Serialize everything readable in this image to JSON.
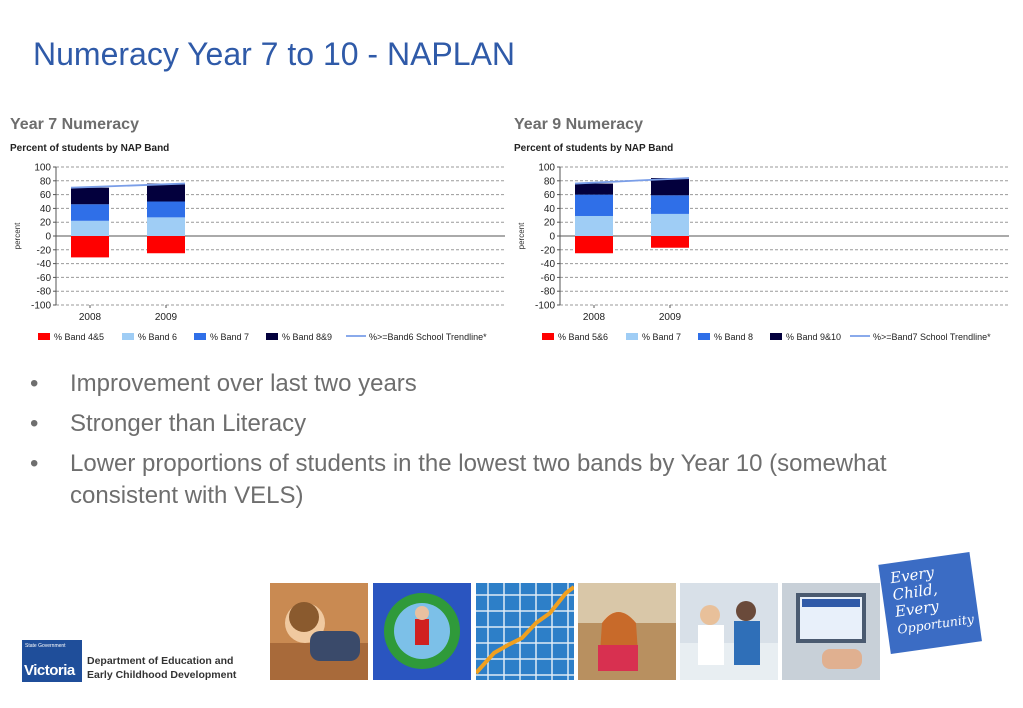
{
  "slide": {
    "title": "Numeracy Year 7 to 10 - NAPLAN",
    "bullets": [
      "Improvement over last two years",
      "Stronger than Literacy",
      "Lower proportions of students in the lowest two bands by Year 10 (somewhat consistent with VELS)"
    ],
    "bullet_glyph": "•"
  },
  "footer": {
    "logo_small": "State Government",
    "logo_big": "Victoria",
    "dept_line1": "Department of Education and",
    "dept_line2": "Early Childhood Development",
    "tagline": [
      "Every",
      "Child,",
      "Every",
      "Opportunity"
    ]
  },
  "chart_data": [
    {
      "type": "bar",
      "stacked": true,
      "heading": "Year 7 Numeracy",
      "subtitle": "Percent of students by NAP Band",
      "ylabel": "percent",
      "ylim": [
        -100,
        100
      ],
      "yticks": [
        100,
        80,
        60,
        40,
        20,
        0,
        -20,
        -40,
        -60,
        -80,
        -100
      ],
      "categories": [
        "2008",
        "2009"
      ],
      "series": [
        {
          "name": "% Band 4&5",
          "color": "#ff0000",
          "values": [
            -31,
            -25
          ]
        },
        {
          "name": "% Band 6",
          "color": "#9fcdf5",
          "values": [
            22,
            27
          ]
        },
        {
          "name": "% Band 7",
          "color": "#2f6fe8",
          "values": [
            24,
            23
          ]
        },
        {
          "name": "% Band 8&9",
          "color": "#03003d",
          "values": [
            24,
            26
          ]
        }
      ],
      "trendline": {
        "name": "%>=Band6 School Trendline*",
        "color": "#7a9ee8",
        "values": [
          70,
          76
        ]
      },
      "grid": true,
      "legend": "bottom"
    },
    {
      "type": "bar",
      "stacked": true,
      "heading": "Year 9 Numeracy",
      "subtitle": "Percent of students by NAP Band",
      "ylabel": "percent",
      "ylim": [
        -100,
        100
      ],
      "yticks": [
        100,
        80,
        60,
        40,
        20,
        0,
        -20,
        -40,
        -60,
        -80,
        -100
      ],
      "categories": [
        "2008",
        "2009"
      ],
      "series": [
        {
          "name": "% Band 5&6",
          "color": "#ff0000",
          "values": [
            -25,
            -17
          ]
        },
        {
          "name": "% Band 7",
          "color": "#9fcdf5",
          "values": [
            29,
            32
          ]
        },
        {
          "name": "% Band 8",
          "color": "#2f6fe8",
          "values": [
            31,
            27
          ]
        },
        {
          "name": "% Band 9&10",
          "color": "#03003d",
          "values": [
            16,
            25
          ]
        }
      ],
      "trendline": {
        "name": "%>=Band7 School Trendline*",
        "color": "#7a9ee8",
        "values": [
          76,
          84
        ]
      },
      "grid": true,
      "legend": "bottom"
    }
  ]
}
